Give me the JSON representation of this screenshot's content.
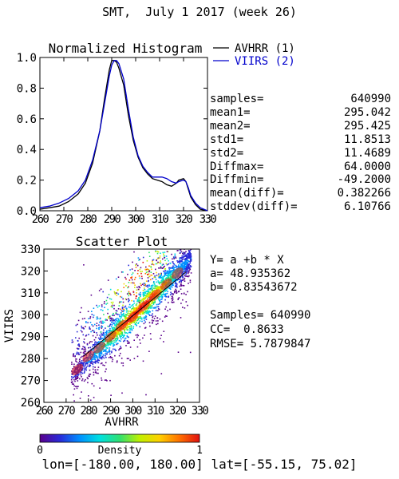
{
  "page": {
    "title": "SMT,  July 1 2017 (week 26)",
    "footer": "lon=[-180.00, 180.00] lat=[-55.15, 75.02]"
  },
  "chart_data": [
    {
      "type": "line",
      "title": "Normalized Histogram",
      "xlabel": "",
      "ylabel": "",
      "xlim": [
        260,
        330
      ],
      "ylim": [
        0.0,
        1.0
      ],
      "xticks": [
        "260",
        "270",
        "280",
        "290",
        "300",
        "310",
        "320",
        "330"
      ],
      "yticks": [
        "0.0",
        "0.2",
        "0.4",
        "0.6",
        "0.8",
        "1.0"
      ],
      "legend_position": "right",
      "series": [
        {
          "name": "AVHRR (1)",
          "color": "#000000",
          "x": [
            260,
            264,
            268,
            272,
            276,
            279,
            282,
            285,
            287,
            289,
            290,
            291,
            292,
            293,
            295,
            297,
            299,
            301,
            303,
            305,
            307,
            309,
            311,
            313,
            315,
            317,
            318,
            320,
            321,
            322,
            323,
            325,
            327,
            330
          ],
          "y": [
            0.01,
            0.02,
            0.03,
            0.06,
            0.11,
            0.18,
            0.31,
            0.52,
            0.73,
            0.92,
            0.98,
            0.98,
            0.97,
            0.93,
            0.82,
            0.62,
            0.46,
            0.35,
            0.28,
            0.24,
            0.21,
            0.2,
            0.19,
            0.17,
            0.16,
            0.18,
            0.2,
            0.21,
            0.19,
            0.14,
            0.09,
            0.04,
            0.01,
            0.0
          ]
        },
        {
          "name": "VIIRS (2)",
          "color": "#0000cc",
          "x": [
            260,
            264,
            268,
            272,
            276,
            279,
            282,
            285,
            287,
            289,
            290,
            291,
            292,
            293,
            295,
            297,
            299,
            301,
            303,
            305,
            307,
            309,
            311,
            313,
            315,
            317,
            318,
            320,
            321,
            322,
            323,
            325,
            327,
            330
          ],
          "y": [
            0.02,
            0.03,
            0.05,
            0.08,
            0.13,
            0.2,
            0.33,
            0.52,
            0.7,
            0.88,
            0.95,
            0.98,
            0.98,
            0.96,
            0.86,
            0.66,
            0.48,
            0.36,
            0.29,
            0.25,
            0.22,
            0.22,
            0.22,
            0.21,
            0.19,
            0.18,
            0.19,
            0.2,
            0.19,
            0.15,
            0.1,
            0.05,
            0.02,
            0.0
          ]
        }
      ]
    },
    {
      "type": "scatter",
      "title": "Scatter Plot",
      "xlabel": "AVHRR",
      "ylabel": "VIIRS",
      "xlim": [
        260,
        330
      ],
      "ylim": [
        260,
        330
      ],
      "xticks": [
        "260",
        "270",
        "280",
        "290",
        "300",
        "310",
        "320",
        "330"
      ],
      "yticks": [
        "260",
        "270",
        "280",
        "290",
        "300",
        "310",
        "320",
        "330"
      ],
      "regression": {
        "a": 48.935362,
        "b": 0.83543672
      },
      "density": {
        "x_bins": [
          265,
          270,
          275,
          280,
          285,
          290,
          295,
          300,
          305,
          310,
          315,
          320,
          325
        ],
        "y_bins": [
          265,
          270,
          275,
          280,
          285,
          290,
          295,
          300,
          305,
          310,
          315,
          320,
          325
        ],
        "ridge_centers": [
          {
            "x": 275,
            "y": 275
          },
          {
            "x": 280,
            "y": 281
          },
          {
            "x": 285,
            "y": 285
          },
          {
            "x": 290,
            "y": 290
          },
          {
            "x": 295,
            "y": 295
          },
          {
            "x": 300,
            "y": 299
          },
          {
            "x": 305,
            "y": 304
          },
          {
            "x": 310,
            "y": 309
          },
          {
            "x": 315,
            "y": 314
          },
          {
            "x": 320,
            "y": 319
          }
        ]
      },
      "colorbar": {
        "label": "Density",
        "min_label": "0",
        "max_label": "1",
        "colors": [
          "#5a008c",
          "#2a2ad8",
          "#0090ff",
          "#00e0e0",
          "#30e070",
          "#c0f000",
          "#ffd000",
          "#ff7000",
          "#e01010"
        ]
      }
    }
  ],
  "stats": [
    {
      "label": "samples=",
      "value": "640990"
    },
    {
      "label": "mean1=",
      "value": "295.042"
    },
    {
      "label": "mean2=",
      "value": "295.425"
    },
    {
      "label": "std1=",
      "value": "11.8513"
    },
    {
      "label": "std2=",
      "value": "11.4689"
    },
    {
      "label": "Diffmax=",
      "value": "64.0000"
    },
    {
      "label": "Diffmin=",
      "value": "-49.2000"
    },
    {
      "label": "mean(diff)=",
      "value": "0.382266"
    },
    {
      "label": "stddev(diff)=",
      "value": "6.10766"
    }
  ],
  "regression_text": {
    "equation": "Y= a +b * X",
    "a_line": "a= 48.935362",
    "b_line": "b= 0.83543672",
    "samples_line": "Samples= 640990",
    "cc_line": "CC=  0.8633",
    "rmse_line": "RMSE= 5.7879847"
  }
}
